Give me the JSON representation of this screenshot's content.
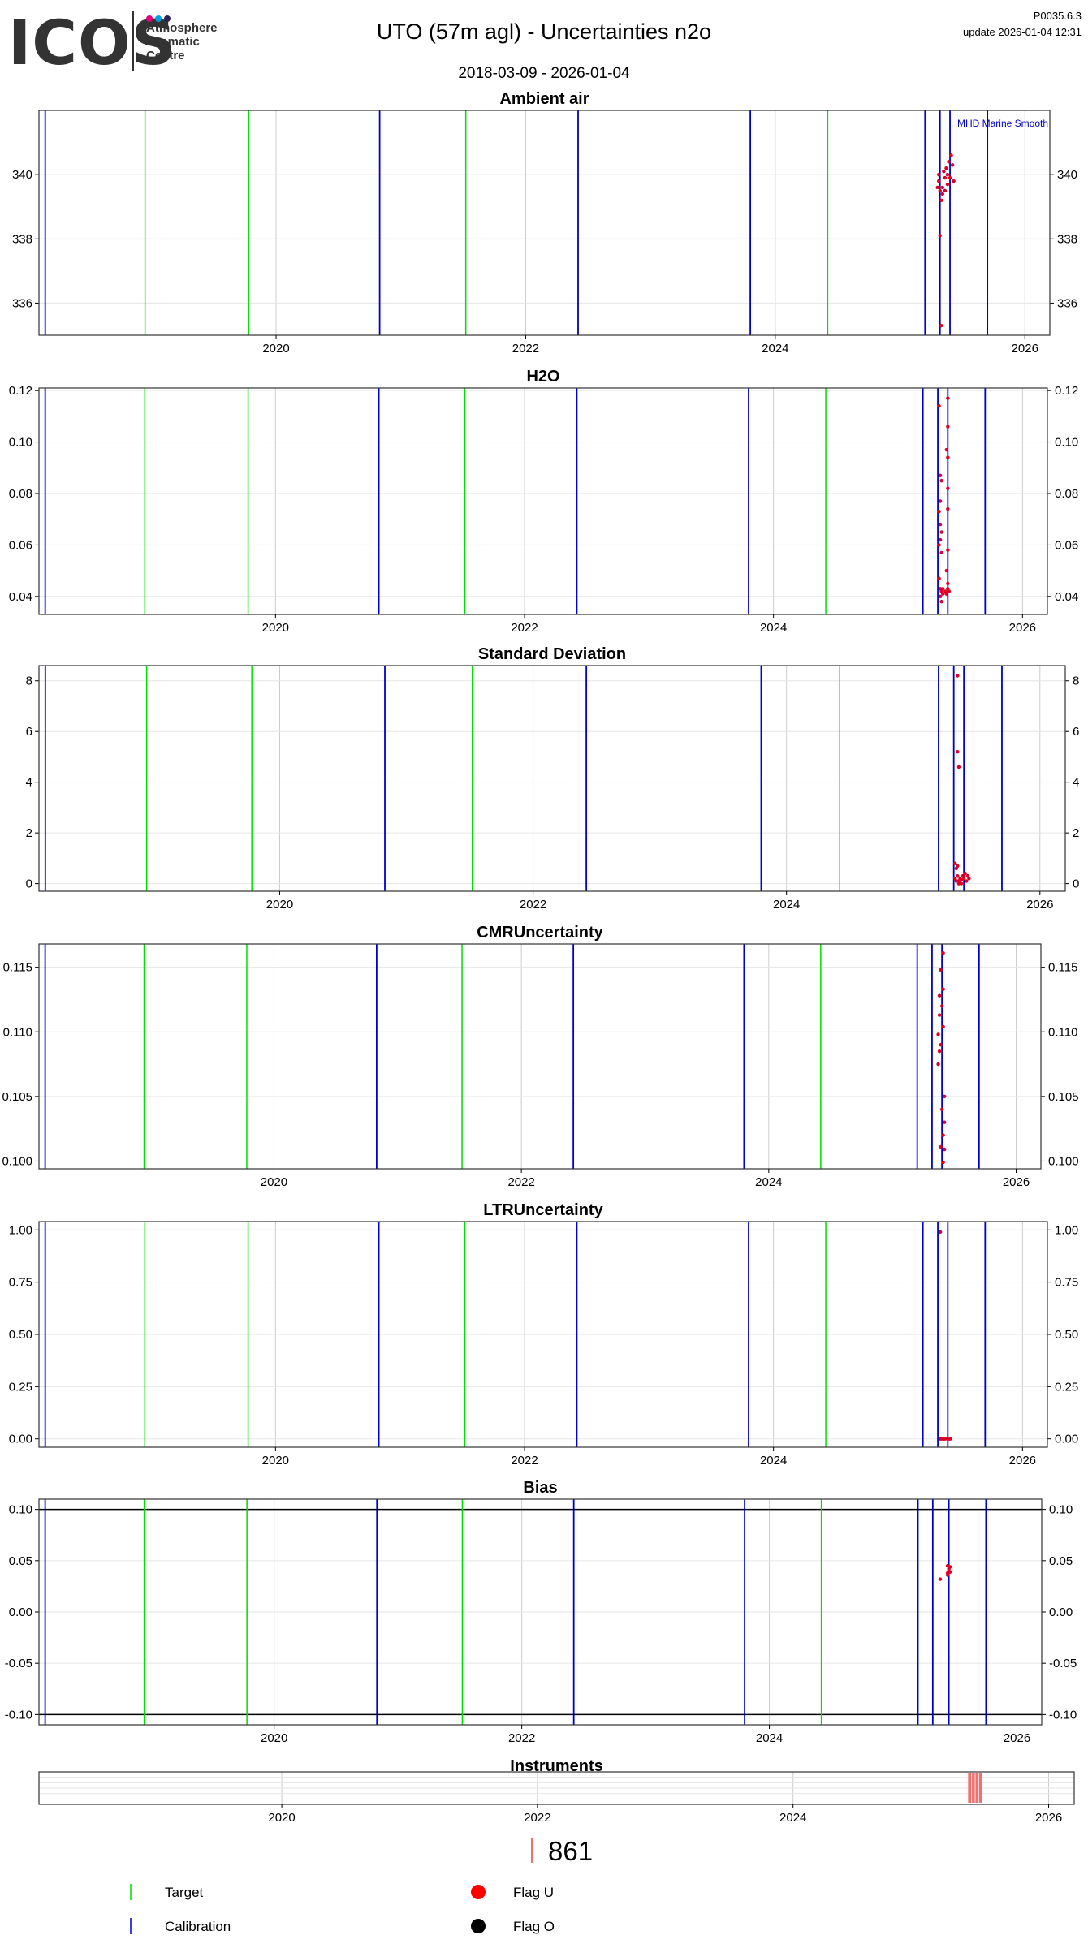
{
  "header": {
    "logo_text": "ICOS",
    "logo_sub": "Atmosphere\nThematic\nCentre",
    "logo_dot_colors": [
      "#e6007e",
      "#00a0df",
      "#29235c"
    ],
    "title": "UTO  (57m agl) - Uncertainties n2o",
    "version": "P0035.6.3",
    "update": "update  2026-01-04 12:31",
    "date_range": "2018-03-09 - 2026-01-04"
  },
  "colors": {
    "target": "#00dd00",
    "calibration": "#0000cc",
    "flag_u": "#ff0000",
    "flag_o": "#000000",
    "data_points": "#dd0022",
    "instrument": "#f07070",
    "grid": "#cccccc"
  },
  "chart_data": [
    {
      "type": "scatter",
      "title": "Ambient air",
      "annotation": "MHD Marine Smooth",
      "xlim": [
        2018.1,
        2026.2
      ],
      "ylim": [
        335.0,
        342.0
      ],
      "x_ticks": [
        2020,
        2022,
        2024,
        2026
      ],
      "y_ticks": [
        336,
        338,
        340
      ],
      "y_tick_labels": [
        "336",
        "338",
        "340"
      ],
      "target_lines": [
        2018.95,
        2019.78,
        2021.52,
        2024.42
      ],
      "calibration_lines": [
        2018.15,
        2020.83,
        2022.42,
        2023.8,
        2025.2,
        2025.32,
        2025.4,
        2025.7
      ],
      "points": [
        [
          2025.31,
          339.8
        ],
        [
          2025.32,
          339.5
        ],
        [
          2025.33,
          339.2
        ],
        [
          2025.31,
          340.0
        ],
        [
          2025.34,
          339.6
        ],
        [
          2025.35,
          340.1
        ],
        [
          2025.32,
          338.1
        ],
        [
          2025.33,
          335.3
        ],
        [
          2025.36,
          339.9
        ],
        [
          2025.37,
          340.2
        ],
        [
          2025.38,
          339.7
        ],
        [
          2025.39,
          340.4
        ],
        [
          2025.4,
          339.9
        ],
        [
          2025.41,
          340.6
        ],
        [
          2025.42,
          340.3
        ],
        [
          2025.43,
          339.8
        ],
        [
          2025.34,
          339.4
        ],
        [
          2025.36,
          339.5
        ],
        [
          2025.3,
          339.6
        ],
        [
          2025.38,
          340.0
        ]
      ]
    },
    {
      "type": "scatter",
      "title": "H2O",
      "xlim": [
        2018.1,
        2026.2
      ],
      "ylim": [
        0.033,
        0.121
      ],
      "x_ticks": [
        2020,
        2022,
        2024,
        2026
      ],
      "y_ticks": [
        0.04,
        0.06,
        0.08,
        0.1,
        0.12
      ],
      "y_tick_labels": [
        "0.04",
        "0.06",
        "0.08",
        "0.10",
        "0.12"
      ],
      "target_lines": [
        2018.95,
        2019.78,
        2021.52,
        2024.42
      ],
      "calibration_lines": [
        2018.15,
        2020.83,
        2022.42,
        2023.8,
        2025.2,
        2025.32,
        2025.4,
        2025.7
      ],
      "points": [
        [
          2025.33,
          0.114
        ],
        [
          2025.4,
          0.117
        ],
        [
          2025.4,
          0.106
        ],
        [
          2025.39,
          0.097
        ],
        [
          2025.4,
          0.094
        ],
        [
          2025.34,
          0.087
        ],
        [
          2025.35,
          0.085
        ],
        [
          2025.4,
          0.082
        ],
        [
          2025.34,
          0.077
        ],
        [
          2025.33,
          0.073
        ],
        [
          2025.4,
          0.074
        ],
        [
          2025.34,
          0.068
        ],
        [
          2025.35,
          0.065
        ],
        [
          2025.34,
          0.062
        ],
        [
          2025.33,
          0.06
        ],
        [
          2025.4,
          0.058
        ],
        [
          2025.35,
          0.057
        ],
        [
          2025.39,
          0.05
        ],
        [
          2025.4,
          0.045
        ],
        [
          2025.33,
          0.047
        ],
        [
          2025.34,
          0.043
        ],
        [
          2025.35,
          0.042
        ],
        [
          2025.36,
          0.041
        ],
        [
          2025.34,
          0.04
        ],
        [
          2025.35,
          0.038
        ],
        [
          2025.36,
          0.043
        ],
        [
          2025.38,
          0.042
        ],
        [
          2025.39,
          0.041
        ],
        [
          2025.4,
          0.043
        ],
        [
          2025.41,
          0.042
        ]
      ]
    },
    {
      "type": "scatter",
      "title": "Standard Deviation",
      "xlim": [
        2018.1,
        2026.2
      ],
      "ylim": [
        -0.3,
        8.6
      ],
      "x_ticks": [
        2020,
        2022,
        2024,
        2026
      ],
      "y_ticks": [
        0,
        2,
        4,
        6,
        8
      ],
      "y_tick_labels": [
        "0",
        "2",
        "4",
        "6",
        "8"
      ],
      "target_lines": [
        2018.95,
        2019.78,
        2021.52,
        2024.42
      ],
      "calibration_lines": [
        2018.15,
        2020.83,
        2022.42,
        2023.8,
        2025.2,
        2025.32,
        2025.4,
        2025.7
      ],
      "points": [
        [
          2025.35,
          8.2
        ],
        [
          2025.35,
          5.2
        ],
        [
          2025.36,
          4.6
        ],
        [
          2025.33,
          0.8
        ],
        [
          2025.34,
          0.6
        ],
        [
          2025.35,
          0.7
        ],
        [
          2025.33,
          0.2
        ],
        [
          2025.34,
          0.1
        ],
        [
          2025.35,
          0.3
        ],
        [
          2025.36,
          0.1
        ],
        [
          2025.37,
          0.2
        ],
        [
          2025.38,
          0.15
        ],
        [
          2025.39,
          0.3
        ],
        [
          2025.4,
          0.2
        ],
        [
          2025.41,
          0.4
        ],
        [
          2025.42,
          0.1
        ],
        [
          2025.43,
          0.3
        ],
        [
          2025.44,
          0.2
        ],
        [
          2025.36,
          0.0
        ],
        [
          2025.38,
          0.0
        ]
      ]
    },
    {
      "type": "scatter",
      "title": "CMRUncertainty",
      "xlim": [
        2018.1,
        2026.2
      ],
      "ylim": [
        0.0994,
        0.1168
      ],
      "x_ticks": [
        2020,
        2022,
        2024,
        2026
      ],
      "y_ticks": [
        0.1,
        0.105,
        0.11,
        0.115
      ],
      "y_tick_labels": [
        "0.100",
        "0.105",
        "0.110",
        "0.115"
      ],
      "target_lines": [
        2018.95,
        2019.78,
        2021.52,
        2024.42
      ],
      "calibration_lines": [
        2018.15,
        2020.83,
        2022.42,
        2023.8,
        2025.2,
        2025.32,
        2025.4,
        2025.7
      ],
      "points": [
        [
          2025.41,
          0.1161
        ],
        [
          2025.39,
          0.1148
        ],
        [
          2025.41,
          0.1133
        ],
        [
          2025.38,
          0.1128
        ],
        [
          2025.4,
          0.112
        ],
        [
          2025.38,
          0.1113
        ],
        [
          2025.41,
          0.1104
        ],
        [
          2025.37,
          0.1098
        ],
        [
          2025.39,
          0.109
        ],
        [
          2025.38,
          0.1085
        ],
        [
          2025.37,
          0.1075
        ],
        [
          2025.42,
          0.105
        ],
        [
          2025.4,
          0.104
        ],
        [
          2025.42,
          0.103
        ],
        [
          2025.41,
          0.102
        ],
        [
          2025.39,
          0.1011
        ],
        [
          2025.42,
          0.1009
        ],
        [
          2025.41,
          0.0999
        ]
      ]
    },
    {
      "type": "scatter",
      "title": "LTRUncertainty",
      "xlim": [
        2018.1,
        2026.2
      ],
      "ylim": [
        -0.04,
        1.04
      ],
      "x_ticks": [
        2020,
        2022,
        2024,
        2026
      ],
      "y_ticks": [
        0.0,
        0.25,
        0.5,
        0.75,
        1.0
      ],
      "y_tick_labels": [
        "0.00",
        "0.25",
        "0.50",
        "0.75",
        "1.00"
      ],
      "target_lines": [
        2018.95,
        2019.78,
        2021.52,
        2024.42
      ],
      "calibration_lines": [
        2018.15,
        2020.83,
        2022.42,
        2023.8,
        2025.2,
        2025.32,
        2025.4,
        2025.7
      ],
      "points": [
        [
          2025.34,
          0.99
        ],
        [
          2025.34,
          0.0
        ],
        [
          2025.35,
          0.0
        ],
        [
          2025.36,
          0.0
        ],
        [
          2025.37,
          0.0
        ],
        [
          2025.38,
          0.0
        ],
        [
          2025.4,
          0.0
        ],
        [
          2025.41,
          0.0
        ],
        [
          2025.42,
          0.0
        ]
      ]
    },
    {
      "type": "scatter",
      "title": "Bias",
      "xlim": [
        2018.1,
        2026.2
      ],
      "ylim": [
        -0.11,
        0.11
      ],
      "x_ticks": [
        2020,
        2022,
        2024,
        2026
      ],
      "y_ticks": [
        -0.1,
        -0.05,
        0.0,
        0.05,
        0.1
      ],
      "y_tick_labels": [
        "-0.10",
        "-0.05",
        "0.00",
        "0.05",
        "0.10"
      ],
      "h_lines": [
        0.1,
        -0.1
      ],
      "target_lines": [
        2018.95,
        2019.78,
        2021.52,
        2024.42
      ],
      "calibration_lines": [
        2018.15,
        2020.83,
        2022.42,
        2023.8,
        2025.2,
        2025.32,
        2025.45,
        2025.75
      ],
      "points": [
        [
          2025.38,
          0.032
        ],
        [
          2025.44,
          0.036
        ],
        [
          2025.44,
          0.038
        ],
        [
          2025.45,
          0.04
        ],
        [
          2025.45,
          0.042
        ],
        [
          2025.46,
          0.044
        ],
        [
          2025.44,
          0.045
        ],
        [
          2025.46,
          0.039
        ]
      ]
    },
    {
      "type": "bar",
      "title": "Instruments",
      "xlim": [
        2018.1,
        2026.2
      ],
      "x_ticks": [
        2020,
        2022,
        2024,
        2026
      ],
      "spans": [
        {
          "start": 2025.37,
          "end": 2025.48,
          "label": "861"
        }
      ]
    }
  ],
  "legend": {
    "target": "Target",
    "calibration": "Calibration",
    "flag_u": "Flag U",
    "flag_o": "Flag O",
    "instrument_id": "861"
  }
}
